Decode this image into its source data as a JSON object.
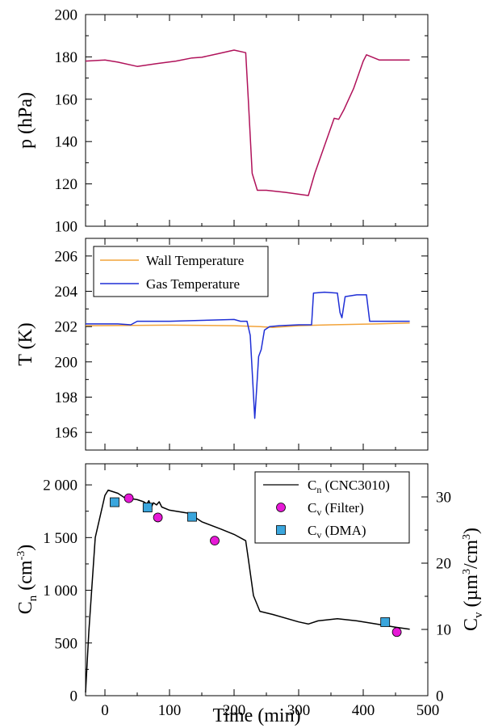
{
  "chart_data": [
    {
      "type": "line",
      "ylabel": "p (hPa)",
      "xlim": [
        -30,
        500
      ],
      "ylim": [
        100,
        200
      ],
      "yticks": [
        "100",
        "120",
        "140",
        "160",
        "180",
        "200"
      ],
      "yticks_values": [
        100,
        120,
        140,
        160,
        180,
        200
      ],
      "series": [
        {
          "color": "#b0125a",
          "points": [
            [
              -30,
              178
            ],
            [
              0,
              178.5
            ],
            [
              20,
              177.5
            ],
            [
              50,
              175.5
            ],
            [
              80,
              176.8
            ],
            [
              110,
              178
            ],
            [
              135,
              179.5
            ],
            [
              150,
              179.8
            ],
            [
              175,
              181.5
            ],
            [
              200,
              183.2
            ],
            [
              218,
              182
            ],
            [
              222,
              160
            ],
            [
              228,
              125
            ],
            [
              236,
              117
            ],
            [
              250,
              117
            ],
            [
              280,
              116
            ],
            [
              315,
              114.5
            ],
            [
              325,
              125
            ],
            [
              340,
              138
            ],
            [
              355,
              151
            ],
            [
              362,
              150.5
            ],
            [
              370,
              155
            ],
            [
              385,
              165
            ],
            [
              400,
              178
            ],
            [
              405,
              181
            ],
            [
              425,
              178.5
            ],
            [
              445,
              178.5
            ],
            [
              472,
              178.5
            ]
          ]
        }
      ]
    },
    {
      "type": "line",
      "ylabel": "T (K)",
      "xlim": [
        -30,
        500
      ],
      "ylim": [
        195,
        207
      ],
      "yticks": [
        "196",
        "198",
        "200",
        "202",
        "204",
        "206"
      ],
      "yticks_values": [
        196,
        198,
        200,
        202,
        204,
        206
      ],
      "legend": "top-left",
      "series": [
        {
          "name": "Wall Temperature",
          "color": "#f2a33a",
          "points": [
            [
              -30,
              202.05
            ],
            [
              100,
              202.08
            ],
            [
              200,
              202.05
            ],
            [
              240,
              202.0
            ],
            [
              260,
              201.95
            ],
            [
              300,
              202.05
            ],
            [
              350,
              202.1
            ],
            [
              420,
              202.15
            ],
            [
              472,
              202.2
            ]
          ]
        },
        {
          "name": "Gas Temperature",
          "color": "#1f2fd6",
          "points": [
            [
              -30,
              202.15
            ],
            [
              20,
              202.15
            ],
            [
              40,
              202.1
            ],
            [
              50,
              202.3
            ],
            [
              100,
              202.3
            ],
            [
              150,
              202.35
            ],
            [
              200,
              202.4
            ],
            [
              210,
              202.3
            ],
            [
              220,
              202.3
            ],
            [
              225,
              201.5
            ],
            [
              228,
              199.5
            ],
            [
              232,
              196.8
            ],
            [
              235,
              198.5
            ],
            [
              238,
              200.3
            ],
            [
              242,
              200.7
            ],
            [
              247,
              201.8
            ],
            [
              255,
              202.0
            ],
            [
              270,
              202.05
            ],
            [
              300,
              202.1
            ],
            [
              320,
              202.1
            ],
            [
              323,
              203.9
            ],
            [
              340,
              203.95
            ],
            [
              360,
              203.9
            ],
            [
              364,
              202.8
            ],
            [
              367,
              202.5
            ],
            [
              372,
              203.7
            ],
            [
              390,
              203.8
            ],
            [
              405,
              203.8
            ],
            [
              410,
              202.3
            ],
            [
              430,
              202.3
            ],
            [
              472,
              202.3
            ]
          ]
        }
      ]
    },
    {
      "type": "line",
      "xlabel": "Time  (min)",
      "ylabel": "C_n (cm^-3)",
      "ylabel_right": "C_v (µm^3/cm^3)",
      "xlim": [
        -30,
        500
      ],
      "ylim": [
        0,
        2200
      ],
      "ylim_right": [
        0,
        35
      ],
      "xticks": [
        "0",
        "100",
        "200",
        "300",
        "400",
        "500"
      ],
      "xticks_values": [
        0,
        100,
        200,
        300,
        400,
        500
      ],
      "yticks": [
        "0",
        "500",
        "1 000",
        "1 500",
        "2 000"
      ],
      "yticks_values": [
        0,
        500,
        1000,
        1500,
        2000
      ],
      "yticks_right": [
        "0",
        "10",
        "20",
        "30"
      ],
      "yticks_right_values": [
        0,
        10,
        20,
        30
      ],
      "legend": "top-right",
      "series": [
        {
          "name": "C_n (CNC3010)",
          "axis": "left",
          "color": "#000000",
          "points": [
            [
              -30,
              30
            ],
            [
              -25,
              600
            ],
            [
              -15,
              1500
            ],
            [
              0,
              1900
            ],
            [
              5,
              1950
            ],
            [
              20,
              1920
            ],
            [
              30,
              1880
            ],
            [
              50,
              1860
            ],
            [
              60,
              1840
            ],
            [
              65,
              1820
            ],
            [
              68,
              1850
            ],
            [
              72,
              1790
            ],
            [
              75,
              1830
            ],
            [
              80,
              1810
            ],
            [
              84,
              1840
            ],
            [
              88,
              1790
            ],
            [
              100,
              1760
            ],
            [
              130,
              1730
            ],
            [
              150,
              1650
            ],
            [
              180,
              1580
            ],
            [
              200,
              1530
            ],
            [
              218,
              1470
            ],
            [
              222,
              1300
            ],
            [
              230,
              950
            ],
            [
              240,
              800
            ],
            [
              260,
              770
            ],
            [
              300,
              700
            ],
            [
              315,
              680
            ],
            [
              330,
              710
            ],
            [
              360,
              730
            ],
            [
              390,
              710
            ],
            [
              420,
              680
            ],
            [
              450,
              650
            ],
            [
              472,
              630
            ]
          ]
        },
        {
          "name": "C_v (Filter)",
          "axis": "right",
          "marker": "circle",
          "color": "#e619d6",
          "points": [
            [
              37,
              29.8
            ],
            [
              82,
              26.9
            ],
            [
              170,
              23.4
            ],
            [
              452,
              9.6
            ]
          ]
        },
        {
          "name": "C_v (DMA)",
          "axis": "right",
          "marker": "square",
          "color": "#3aa6dd",
          "points": [
            [
              15,
              29.2
            ],
            [
              66,
              28.4
            ],
            [
              135,
              27.0
            ],
            [
              434,
              11.1
            ]
          ]
        }
      ]
    }
  ],
  "labels": {
    "p_axis": "p (hPa)",
    "t_axis": "T (K)",
    "time_axis": "Time  (min)",
    "cn_main": "C",
    "cn_sub": "n",
    "cn_rest": " (cm",
    "cn_sup": "-3",
    "cn_close": ")",
    "cv_main": "C",
    "cv_sub": "v",
    "cv_rest": " (µm",
    "cv_sup1": "3",
    "cv_mid": "/cm",
    "cv_sup2": "3",
    "cv_close": ")"
  },
  "legend_top": {
    "wall": "Wall Temperature",
    "gas": "Gas Temperature"
  },
  "legend_bottom": {
    "cn_main": "C",
    "cn_sub": "n",
    "cn_rest": " (CNC3010)",
    "filter_main": "C",
    "filter_sub": "v",
    "filter_rest": " (Filter)",
    "dma_main": "C",
    "dma_sub": "v",
    "dma_rest": " (DMA)"
  }
}
